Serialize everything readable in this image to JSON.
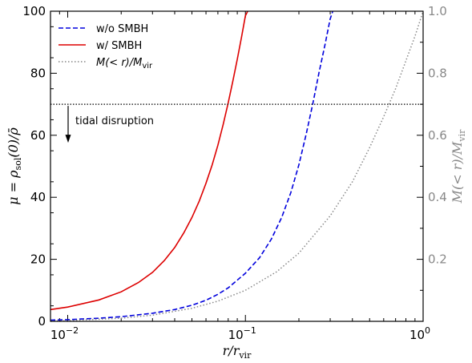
{
  "chart_data": {
    "type": "line",
    "x_scale": "log",
    "xlim": [
      0.008,
      1.0
    ],
    "ylim": [
      0,
      100
    ],
    "y2lim": [
      0,
      1.0
    ],
    "xlabel": "r/r_vir",
    "ylabel": "μ = ρ_sol(0)/ρ̄",
    "y2label": "M(< r)/M_vir",
    "x_ticks": [
      {
        "label": "10",
        "exp": "−2",
        "value": 0.01
      },
      {
        "label": "10",
        "exp": "−1",
        "value": 0.1
      },
      {
        "label": "10",
        "exp": "0",
        "value": 1.0
      }
    ],
    "y_ticks": [
      "0",
      "20",
      "40",
      "60",
      "80",
      "100"
    ],
    "y2_ticks": [
      "0.2",
      "0.4",
      "0.6",
      "0.8",
      "1.0"
    ],
    "legend_position": "top-left",
    "series": [
      {
        "name": "w/o SMBH",
        "axis": "left",
        "color": "#0000dd",
        "style": "dashed",
        "x": [
          0.008,
          0.01,
          0.015,
          0.02,
          0.03,
          0.04,
          0.05,
          0.06,
          0.07,
          0.08,
          0.1,
          0.12,
          0.14,
          0.16,
          0.18,
          0.2,
          0.22,
          0.24,
          0.26,
          0.28,
          0.3,
          0.31
        ],
        "y": [
          0.4,
          0.55,
          1.0,
          1.5,
          2.6,
          3.8,
          5.2,
          6.8,
          8.7,
          10.8,
          15.5,
          20.5,
          26.5,
          33.5,
          41.5,
          50.5,
          60.5,
          70.5,
          80.5,
          89.0,
          97.5,
          100
        ]
      },
      {
        "name": "w/ SMBH",
        "axis": "left",
        "color": "#dd0000",
        "style": "solid",
        "x": [
          0.008,
          0.01,
          0.015,
          0.02,
          0.025,
          0.03,
          0.035,
          0.04,
          0.045,
          0.05,
          0.055,
          0.06,
          0.065,
          0.07,
          0.075,
          0.08,
          0.085,
          0.09,
          0.095,
          0.1,
          0.103
        ],
        "y": [
          3.8,
          4.6,
          6.9,
          9.5,
          12.5,
          15.8,
          19.6,
          23.8,
          28.5,
          33.5,
          38.8,
          44.5,
          50.5,
          56.8,
          63.5,
          70.5,
          77.5,
          84.5,
          91.5,
          98.5,
          100
        ]
      },
      {
        "name": "M(< r)/M_vir",
        "axis": "right",
        "color": "#888888",
        "style": "dotted",
        "x": [
          0.008,
          0.01,
          0.02,
          0.03,
          0.05,
          0.07,
          0.1,
          0.15,
          0.2,
          0.3,
          0.4,
          0.5,
          0.6,
          0.7,
          0.8,
          0.9,
          1.0
        ],
        "y": [
          0.0,
          0.002,
          0.01,
          0.02,
          0.042,
          0.065,
          0.1,
          0.16,
          0.22,
          0.34,
          0.45,
          0.56,
          0.66,
          0.75,
          0.84,
          0.92,
          1.0
        ]
      }
    ],
    "hline": {
      "y": 70
    },
    "annotation": {
      "text": "tidal disruption"
    }
  }
}
